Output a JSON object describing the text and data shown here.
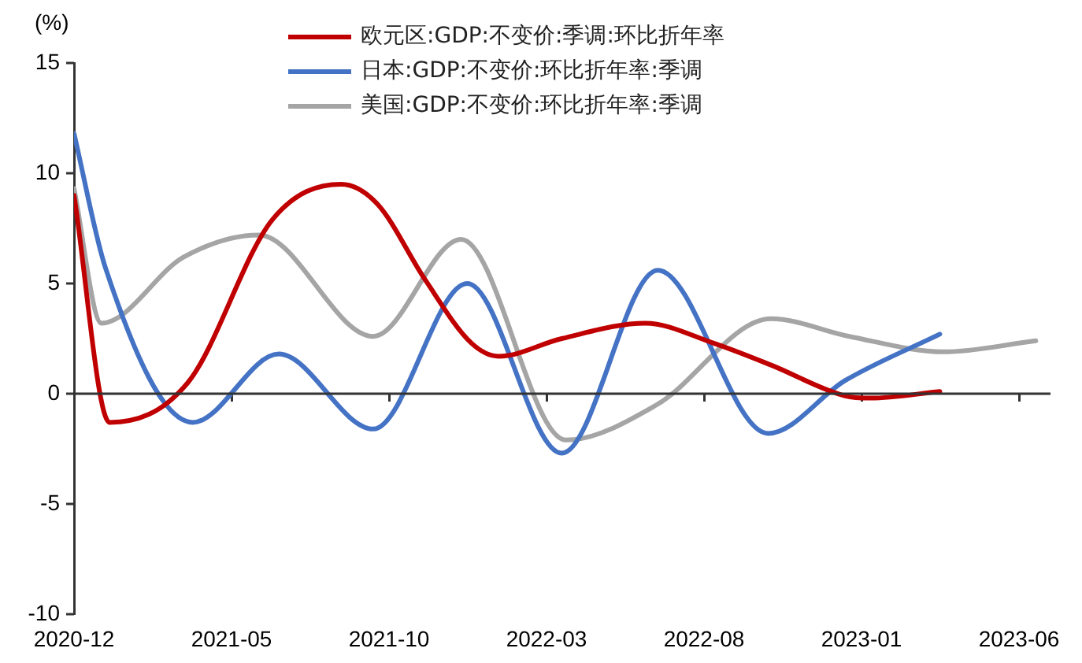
{
  "chart_data": {
    "type": "line",
    "ylabel": "(%)",
    "xlim": [
      "2020-12",
      "2023-07"
    ],
    "xticks": [
      "2020-12",
      "2021-05",
      "2021-10",
      "2022-03",
      "2022-08",
      "2023-01",
      "2023-06"
    ],
    "ylim": [
      -10,
      15
    ],
    "yticks": [
      -10,
      -5,
      0,
      5,
      10,
      15
    ],
    "grid": false,
    "ref_lines": [
      {
        "axis": "y",
        "value": 0,
        "color": "#333333"
      }
    ],
    "legend": "top",
    "marker": "none",
    "line_style": "solid",
    "series": [
      {
        "name": "欧元区:GDP:不变价:季调:环比折年率",
        "color": "#c00000",
        "x": [
          "2020-12-01",
          "2021-01-05",
          "2021-03-20",
          "2021-06-10",
          "2021-08-16",
          "2021-09-20",
          "2021-11-05",
          "2021-12-20",
          "2022-01-16",
          "2022-03-16",
          "2022-06-05",
          "2022-08-10",
          "2022-10-05",
          "2022-12-16",
          "2023-01-10",
          "2023-03-16"
        ],
        "values": [
          9,
          -1.3,
          0.5,
          7.9,
          9.5,
          8.6,
          5.2,
          2.3,
          1.7,
          2.5,
          3.2,
          2.3,
          1.3,
          -0.1,
          -0.2,
          0.1
        ]
      },
      {
        "name": "日本:GDP:不变价:环比折年率:季调",
        "color": "#4472c4",
        "x": [
          "2020-12-01",
          "2021-01-01",
          "2021-03-25",
          "2021-06-16",
          "2021-09-16",
          "2021-12-16",
          "2022-03-16",
          "2022-06-17",
          "2022-10-02",
          "2022-12-16",
          "2023-03-16"
        ],
        "values": [
          11.8,
          5.7,
          -1.3,
          1.8,
          -1.6,
          5.0,
          -2.7,
          5.6,
          -1.8,
          0.6,
          2.7
        ]
      },
      {
        "name": "美国:GDP:不变价:环比折年率:季调",
        "color": "#a5a5a5",
        "x": [
          "2020-12-01",
          "2020-12-28",
          "2021-03-16",
          "2021-05-28",
          "2021-09-16",
          "2021-12-10",
          "2022-03-20",
          "2022-06-16",
          "2022-10-05",
          "2022-12-20",
          "2023-03-20",
          "2023-06-17"
        ],
        "values": [
          9.3,
          3.2,
          6.2,
          7.2,
          2.6,
          7.0,
          -2.1,
          -0.5,
          3.4,
          2.6,
          1.9,
          2.4
        ]
      }
    ]
  }
}
